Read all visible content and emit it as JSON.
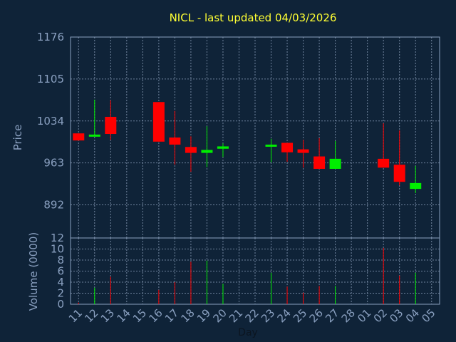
{
  "chart_data": [
    {
      "type": "candlestick",
      "title": "NICL - last updated 04/03/2026",
      "ylabel": "Price",
      "ylim": [
        836,
        1176
      ],
      "yticks": [
        1176,
        1105,
        1034,
        963,
        892
      ],
      "grid": true,
      "categories": [
        "11",
        "12",
        "13",
        "14",
        "15",
        "16",
        "17",
        "18",
        "19",
        "20",
        "21",
        "22",
        "23",
        "24",
        "25",
        "26",
        "27",
        "28",
        "01",
        "02",
        "03",
        "04",
        "05"
      ],
      "candles": [
        {
          "x": "11",
          "open": 1013,
          "high": 1013,
          "low": 1001,
          "close": 1001
        },
        {
          "x": "12",
          "open": 1009,
          "high": 1070,
          "low": 1009,
          "close": 1011
        },
        {
          "x": "13",
          "open": 1041,
          "high": 1069,
          "low": 1002,
          "close": 1012
        },
        {
          "x": "16",
          "open": 1066,
          "high": 1066,
          "low": 999,
          "close": 999
        },
        {
          "x": "17",
          "open": 1006,
          "high": 1051,
          "low": 960,
          "close": 994
        },
        {
          "x": "18",
          "open": 990,
          "high": 1008,
          "low": 948,
          "close": 980
        },
        {
          "x": "19",
          "open": 980,
          "high": 1025,
          "low": 956,
          "close": 985
        },
        {
          "x": "20",
          "open": 987,
          "high": 996,
          "low": 973,
          "close": 991
        },
        {
          "x": "23",
          "open": 992,
          "high": 1004,
          "low": 964,
          "close": 994
        },
        {
          "x": "24",
          "open": 997,
          "high": 997,
          "low": 965,
          "close": 981
        },
        {
          "x": "25",
          "open": 986,
          "high": 1002,
          "low": 955,
          "close": 980
        },
        {
          "x": "26",
          "open": 974,
          "high": 1005,
          "low": 953,
          "close": 953
        },
        {
          "x": "27",
          "open": 953,
          "high": 1000,
          "low": 953,
          "close": 970
        },
        {
          "x": "02",
          "open": 970,
          "high": 1030,
          "low": 955,
          "close": 955
        },
        {
          "x": "03",
          "open": 960,
          "high": 1018,
          "low": 925,
          "close": 931
        },
        {
          "x": "04",
          "open": 919,
          "high": 958,
          "low": 912,
          "close": 929
        }
      ]
    },
    {
      "type": "bar",
      "ylabel": "Volume (0000)",
      "xlabel": "Day",
      "ylim": [
        0,
        12
      ],
      "yticks": [
        0,
        2,
        4,
        6,
        8,
        10,
        12
      ],
      "grid": true,
      "categories": [
        "11",
        "12",
        "13",
        "14",
        "15",
        "16",
        "17",
        "18",
        "19",
        "20",
        "21",
        "22",
        "23",
        "24",
        "25",
        "26",
        "27",
        "28",
        "01",
        "02",
        "03",
        "04",
        "05"
      ],
      "bars": [
        {
          "x": "11",
          "value": 0.3,
          "color": "#ff0000"
        },
        {
          "x": "12",
          "value": 3.0,
          "color": "#00ee00"
        },
        {
          "x": "13",
          "value": 5.0,
          "color": "#ff0000"
        },
        {
          "x": "16",
          "value": 2.6,
          "color": "#ff0000"
        },
        {
          "x": "17",
          "value": 4.0,
          "color": "#ff0000"
        },
        {
          "x": "18",
          "value": 7.7,
          "color": "#ff0000"
        },
        {
          "x": "19",
          "value": 7.9,
          "color": "#00ee00"
        },
        {
          "x": "20",
          "value": 3.7,
          "color": "#00ee00"
        },
        {
          "x": "23",
          "value": 5.7,
          "color": "#00ee00"
        },
        {
          "x": "24",
          "value": 3.2,
          "color": "#ff0000"
        },
        {
          "x": "25",
          "value": 2.1,
          "color": "#ff0000"
        },
        {
          "x": "26",
          "value": 3.3,
          "color": "#ff0000"
        },
        {
          "x": "27",
          "value": 3.3,
          "color": "#00ee00"
        },
        {
          "x": "02",
          "value": 10.2,
          "color": "#ff0000"
        },
        {
          "x": "03",
          "value": 5.2,
          "color": "#ff0000"
        },
        {
          "x": "04",
          "value": 5.7,
          "color": "#00ee00"
        }
      ]
    }
  ],
  "colors": {
    "background": "#0f2338",
    "title": "#ffff33",
    "axis_text": "#8aa0c0",
    "grid": "#8fa3bd",
    "up": "#00ee00",
    "down": "#ff0000"
  }
}
